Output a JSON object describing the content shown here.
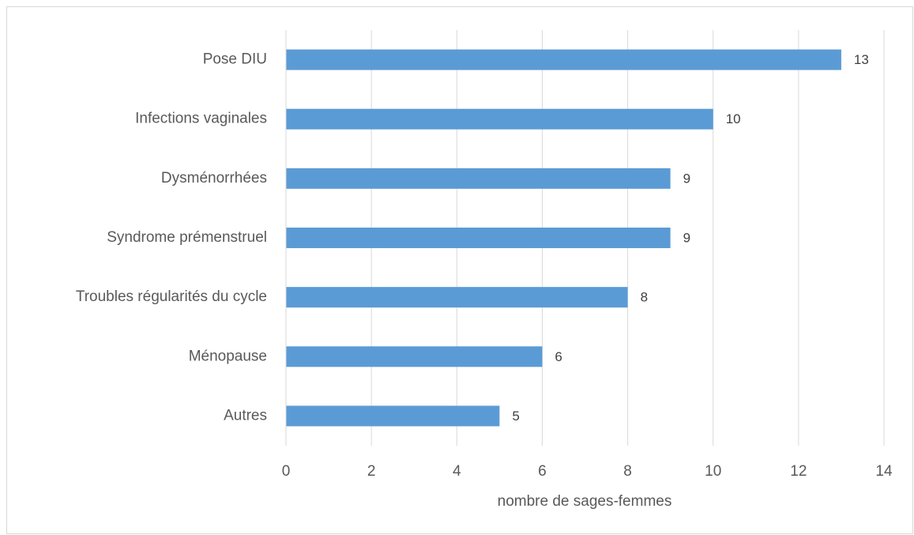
{
  "chart_data": {
    "type": "barh",
    "categories": [
      "Pose DIU",
      "Infections vaginales",
      "Dysménorrhées",
      "Syndrome prémenstruel",
      "Troubles régularités du cycle",
      "Ménopause",
      "Autres"
    ],
    "values": [
      13,
      10,
      9,
      9,
      8,
      6,
      5
    ],
    "color": "#5b9bd5",
    "x_label": "nombre de sages-femmes",
    "xlim": [
      0,
      14
    ],
    "xticks": [
      0,
      2,
      4,
      6,
      8,
      10,
      12,
      14
    ],
    "grid": true
  }
}
